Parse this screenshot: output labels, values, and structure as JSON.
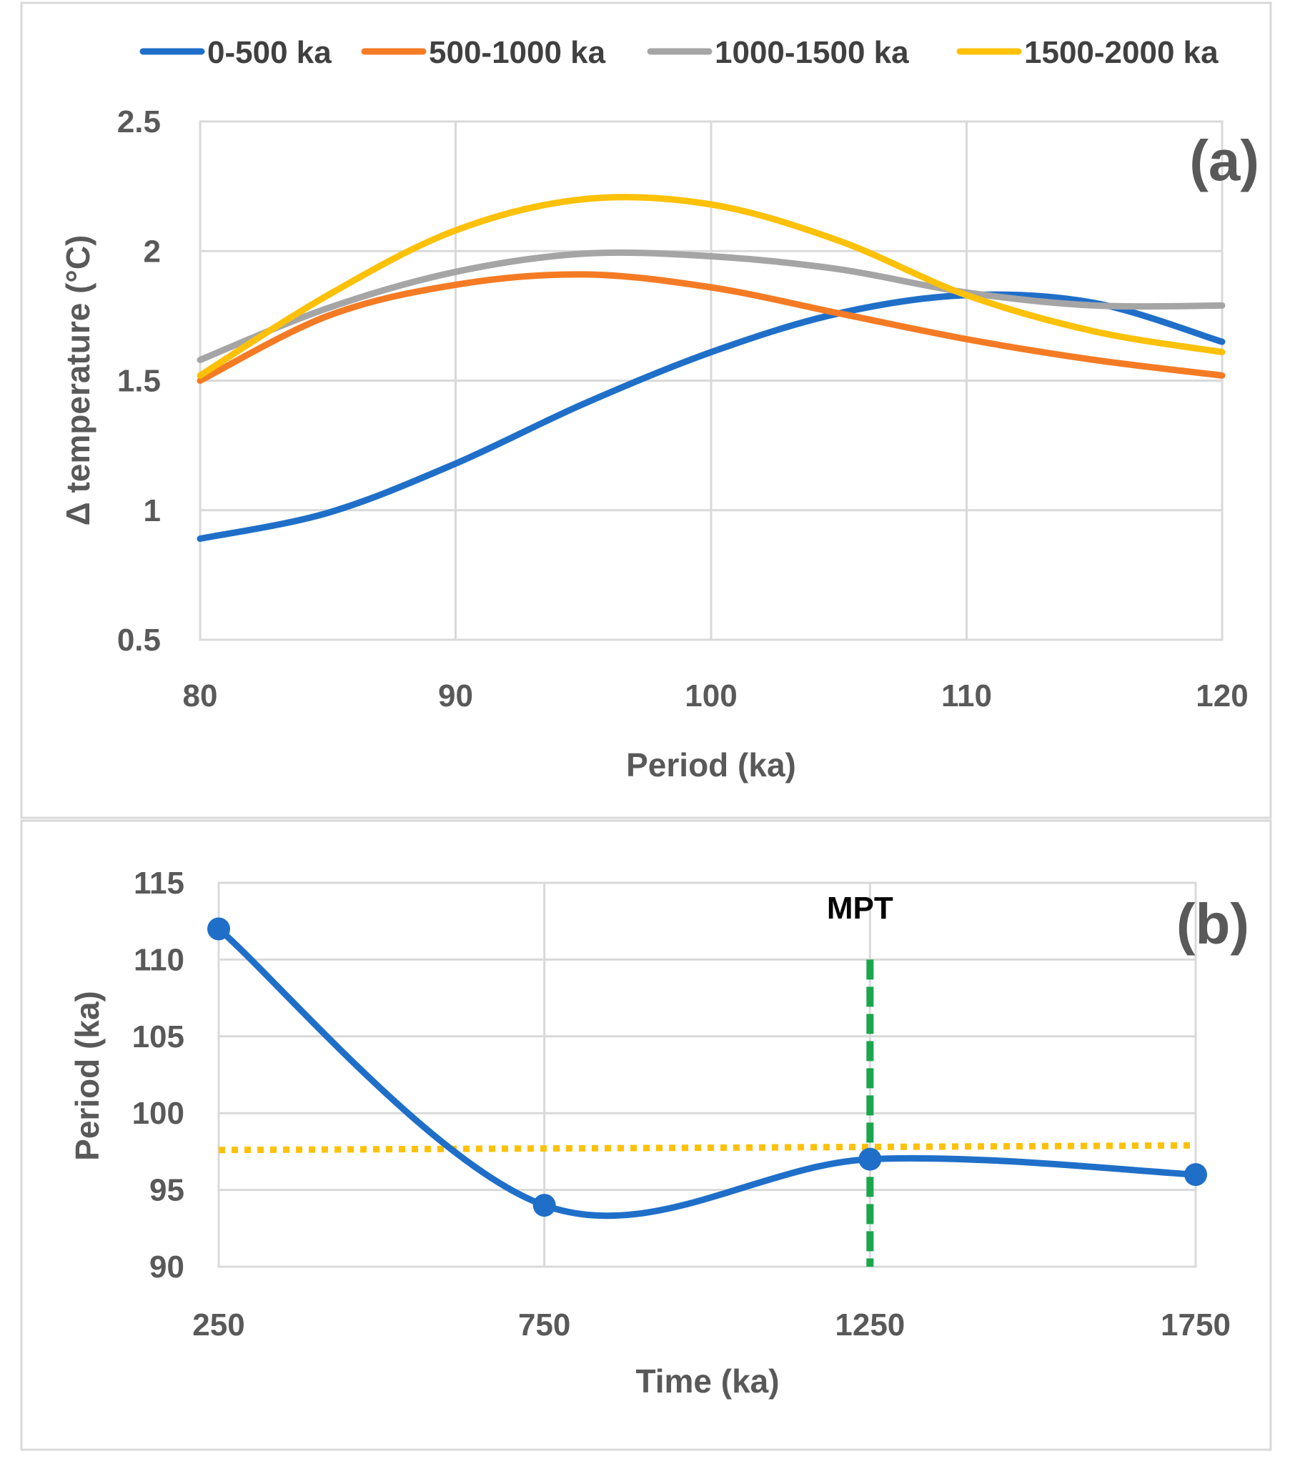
{
  "chart_data": [
    {
      "type": "line",
      "panel_label": "(a)",
      "xlabel": "Period (ka)",
      "ylabel": "Δ temperature (°C)",
      "xlim": [
        80,
        120
      ],
      "ylim": [
        0.5,
        2.5
      ],
      "x_ticks": [
        "80",
        "90",
        "100",
        "110",
        "120"
      ],
      "y_ticks": [
        "0.5",
        "1",
        "1.5",
        "2",
        "2.5"
      ],
      "grid": true,
      "smooth": true,
      "legend_position": "top",
      "x": [
        80,
        85,
        90,
        95,
        100,
        105,
        110,
        115,
        120
      ],
      "series": [
        {
          "name": "0-500 ka",
          "color": "#1f6fc9",
          "values": [
            0.89,
            0.99,
            1.18,
            1.41,
            1.61,
            1.76,
            1.83,
            1.8,
            1.65
          ]
        },
        {
          "name": "500-1000 ka",
          "color": "#f47b24",
          "values": [
            1.5,
            1.75,
            1.87,
            1.91,
            1.86,
            1.76,
            1.66,
            1.58,
            1.52
          ]
        },
        {
          "name": "1000-1500 ka",
          "color": "#a5a5a5",
          "values": [
            1.58,
            1.78,
            1.92,
            1.99,
            1.98,
            1.93,
            1.84,
            1.79,
            1.79
          ]
        },
        {
          "name": "1500-2000 ka",
          "color": "#fcc108",
          "values": [
            1.52,
            1.83,
            2.08,
            2.2,
            2.18,
            2.04,
            1.83,
            1.69,
            1.61
          ]
        }
      ]
    },
    {
      "type": "line",
      "panel_label": "(b)",
      "xlabel": "Time (ka)",
      "ylabel": "Period (ka)",
      "xlim": [
        250,
        1750
      ],
      "ylim": [
        90,
        115
      ],
      "x_ticks": [
        "250",
        "750",
        "1250",
        "1750"
      ],
      "y_ticks": [
        "90",
        "95",
        "100",
        "105",
        "110",
        "115"
      ],
      "grid": true,
      "smooth": true,
      "series": [
        {
          "color": "#1f6fc9",
          "markers": true,
          "x": [
            250,
            750,
            1250,
            1750
          ],
          "values": [
            112,
            94,
            97,
            96
          ]
        }
      ],
      "trendline": {
        "color": "#fcc108",
        "style": "dotted",
        "x": [
          250,
          1750
        ],
        "values": [
          97.6,
          97.9
        ]
      },
      "vline": {
        "label": "MPT",
        "x": 1250,
        "color": "#1aa64c",
        "style": "dashed",
        "y_range": [
          90,
          110
        ]
      }
    }
  ]
}
